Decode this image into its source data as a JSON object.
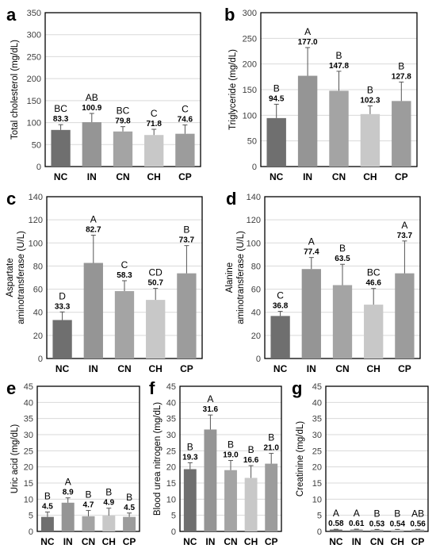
{
  "chart_data": [
    {
      "id": "a",
      "type": "bar",
      "panel_label": "a",
      "ylabel": "Total cholesterol (mg/dL)",
      "ylim": [
        0,
        350
      ],
      "yticks": [
        0,
        50,
        100,
        150,
        200,
        250,
        300,
        350
      ],
      "grid": true,
      "categories": [
        "NC",
        "IN",
        "CN",
        "CH",
        "CP"
      ],
      "values": [
        83.3,
        100.9,
        79.8,
        71.8,
        74.6
      ],
      "value_labels": [
        "83.3",
        "100.9",
        "79.8",
        "71.8",
        "74.6"
      ],
      "errors": [
        12,
        20,
        11,
        13,
        20
      ],
      "groups": [
        "BC",
        "AB",
        "BC",
        "C",
        "C"
      ],
      "colors": [
        "#6f6f6f",
        "#959595",
        "#a4a4a4",
        "#c8c8c8",
        "#9c9c9c"
      ]
    },
    {
      "id": "b",
      "type": "bar",
      "panel_label": "b",
      "ylabel": "Triglyceride (mg/dL)",
      "ylim": [
        0,
        300
      ],
      "yticks": [
        0,
        50,
        100,
        150,
        200,
        250,
        300
      ],
      "grid": true,
      "categories": [
        "NC",
        "IN",
        "CN",
        "CH",
        "CP"
      ],
      "values": [
        94.5,
        177.0,
        147.8,
        102.3,
        127.8
      ],
      "value_labels": [
        "94.5",
        "177.0",
        "147.8",
        "102.3",
        "127.8"
      ],
      "errors": [
        27,
        55,
        38,
        16,
        37
      ],
      "groups": [
        "B",
        "A",
        "B",
        "B",
        "B"
      ],
      "colors": [
        "#6f6f6f",
        "#959595",
        "#a4a4a4",
        "#c8c8c8",
        "#9c9c9c"
      ]
    },
    {
      "id": "c",
      "type": "bar",
      "panel_label": "c",
      "ylabel": "Aspartate aminotransferase (U/L)",
      "ylabel_lines": [
        "Aspartate",
        "aminotransferase (U/L)"
      ],
      "ylim": [
        0,
        140
      ],
      "yticks": [
        0,
        20,
        40,
        60,
        80,
        100,
        120,
        140
      ],
      "grid": true,
      "categories": [
        "NC",
        "IN",
        "CN",
        "CH",
        "CP"
      ],
      "values": [
        33.3,
        82.7,
        58.3,
        50.7,
        73.7
      ],
      "value_labels": [
        "33.3",
        "82.7",
        "58.3",
        "50.7",
        "73.7"
      ],
      "errors": [
        7,
        24,
        9,
        10,
        24
      ],
      "groups": [
        "D",
        "A",
        "C",
        "CD",
        "B"
      ],
      "colors": [
        "#6f6f6f",
        "#959595",
        "#a4a4a4",
        "#c8c8c8",
        "#9c9c9c"
      ]
    },
    {
      "id": "d",
      "type": "bar",
      "panel_label": "d",
      "ylabel": "Alanine aminotransferase (U/L)",
      "ylabel_lines": [
        "Alanine",
        "aminotransferase (U/L)"
      ],
      "ylim": [
        0,
        140
      ],
      "yticks": [
        0,
        20,
        40,
        60,
        80,
        100,
        120,
        140
      ],
      "grid": true,
      "categories": [
        "NC",
        "IN",
        "CN",
        "CH",
        "CP"
      ],
      "values": [
        36.8,
        77.4,
        63.5,
        46.6,
        73.7
      ],
      "value_labels": [
        "36.8",
        "77.4",
        "63.5",
        "46.6",
        "73.7"
      ],
      "errors": [
        4,
        10,
        18,
        14,
        28
      ],
      "groups": [
        "C",
        "A",
        "B",
        "BC",
        "A"
      ],
      "colors": [
        "#6f6f6f",
        "#959595",
        "#a4a4a4",
        "#c8c8c8",
        "#9c9c9c"
      ]
    },
    {
      "id": "e",
      "type": "bar",
      "panel_label": "e",
      "ylabel": "Uric acid (mg/dL)",
      "ylim": [
        0,
        45
      ],
      "yticks": [
        0,
        5,
        10,
        15,
        20,
        25,
        30,
        35,
        40,
        45
      ],
      "grid": true,
      "categories": [
        "NC",
        "IN",
        "CN",
        "CH",
        "CP"
      ],
      "values": [
        4.5,
        8.9,
        4.7,
        4.9,
        4.5
      ],
      "value_labels": [
        "4.5",
        "8.9",
        "4.7",
        "4.9",
        "4.5"
      ],
      "errors": [
        1.5,
        1.5,
        1.8,
        2.3,
        1.2
      ],
      "groups": [
        "B",
        "A",
        "B",
        "B",
        "B"
      ],
      "colors": [
        "#6f6f6f",
        "#959595",
        "#a4a4a4",
        "#c8c8c8",
        "#9c9c9c"
      ]
    },
    {
      "id": "f",
      "type": "bar",
      "panel_label": "f",
      "ylabel": "Blood urea nitrogen (mg/dL)",
      "ylim": [
        0,
        45
      ],
      "yticks": [
        0,
        5,
        10,
        15,
        20,
        25,
        30,
        35,
        40,
        45
      ],
      "grid": true,
      "categories": [
        "NC",
        "IN",
        "CN",
        "CH",
        "CP"
      ],
      "values": [
        19.3,
        31.6,
        19.0,
        16.6,
        21.0
      ],
      "value_labels": [
        "19.3",
        "31.6",
        "19.0",
        "16.6",
        "21.0"
      ],
      "errors": [
        2,
        4.5,
        3,
        3.8,
        3.2
      ],
      "groups": [
        "B",
        "A",
        "B",
        "B",
        "B"
      ],
      "colors": [
        "#6f6f6f",
        "#959595",
        "#a4a4a4",
        "#c8c8c8",
        "#9c9c9c"
      ]
    },
    {
      "id": "g",
      "type": "bar",
      "panel_label": "g",
      "ylabel": "Creatinine (mg/dL)",
      "ylim": [
        0,
        45
      ],
      "yticks": [
        0,
        5,
        10,
        15,
        20,
        25,
        30,
        35,
        40,
        45
      ],
      "grid": true,
      "categories": [
        "NC",
        "IN",
        "CN",
        "CH",
        "CP"
      ],
      "values": [
        0.58,
        0.61,
        0.53,
        0.54,
        0.56
      ],
      "value_labels": [
        "0.58",
        "0.61",
        "0.53",
        "0.54",
        "0.56"
      ],
      "errors": [
        0.1,
        0.1,
        0.1,
        0.1,
        0.1
      ],
      "groups": [
        "A",
        "A",
        "B",
        "B",
        "AB"
      ],
      "colors": [
        "#6f6f6f",
        "#959595",
        "#a4a4a4",
        "#c8c8c8",
        "#9c9c9c"
      ]
    }
  ]
}
